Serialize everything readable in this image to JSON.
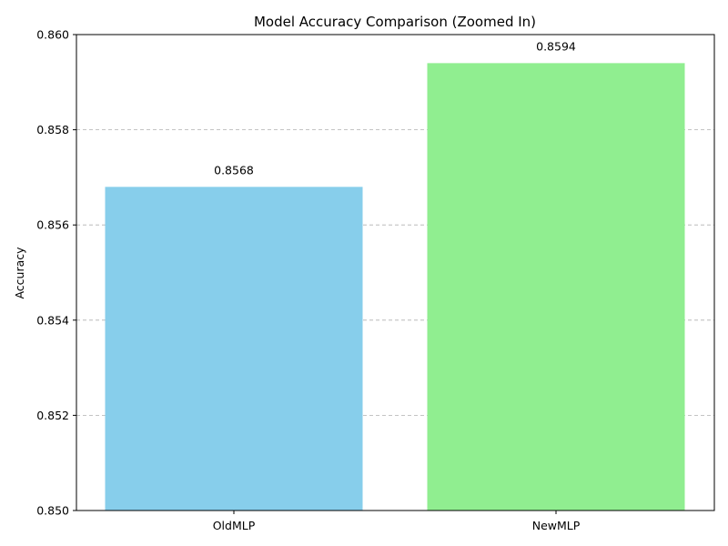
{
  "chart_data": {
    "type": "bar",
    "title": "Model Accuracy Comparison (Zoomed In)",
    "xlabel": "",
    "ylabel": "Accuracy",
    "categories": [
      "OldMLP",
      "NewMLP"
    ],
    "values": [
      0.8568,
      0.8594
    ],
    "value_labels": [
      "0.8568",
      "0.8594"
    ],
    "colors": [
      "#87ceeb",
      "#90ee90"
    ],
    "ylim": [
      0.85,
      0.86
    ],
    "yticks": [
      0.85,
      0.852,
      0.854,
      0.856,
      0.858,
      0.86
    ],
    "ytick_labels": [
      "0.850",
      "0.852",
      "0.854",
      "0.856",
      "0.858",
      "0.860"
    ],
    "grid": "y-dashed",
    "legend": "none"
  }
}
